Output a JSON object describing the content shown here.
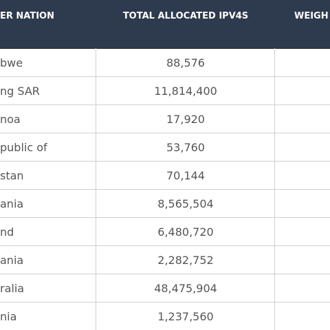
{
  "table": {
    "header": [
      "ER NATION",
      "TOTAL ALLOCATED IPV4S",
      "WEIGH"
    ],
    "rows": [
      [
        "bwe",
        "88,576"
      ],
      [
        "ng SAR",
        "11,814,400"
      ],
      [
        "noa",
        "17,920"
      ],
      [
        "public of",
        "53,760"
      ],
      [
        "stan",
        "70,144"
      ],
      [
        "ania",
        "8,565,504"
      ],
      [
        "nd",
        "6,480,720"
      ],
      [
        "ania",
        "2,282,752"
      ],
      [
        "ralia",
        "48,475,904"
      ],
      [
        "nia",
        "1,237,560"
      ]
    ]
  }
}
